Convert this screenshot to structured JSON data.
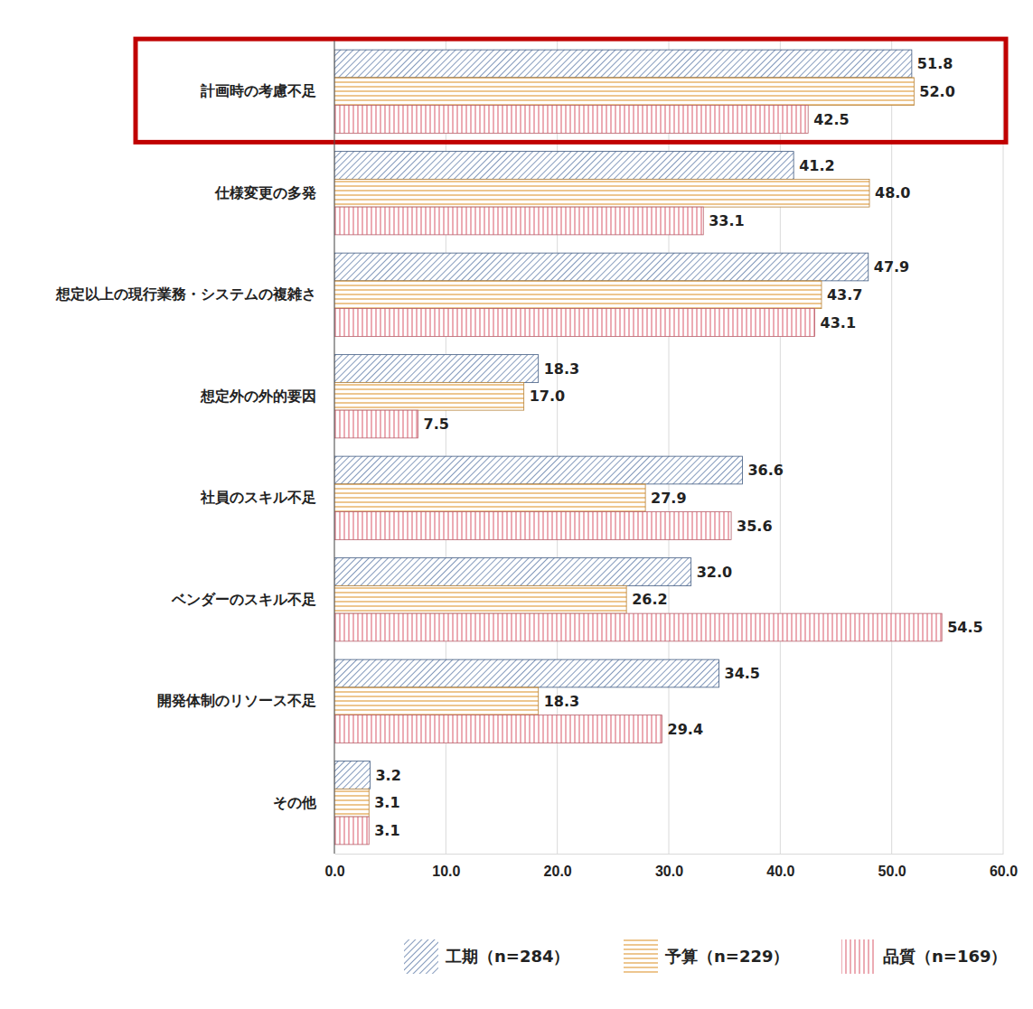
{
  "chart_data": {
    "type": "bar",
    "orientation": "horizontal",
    "categories": [
      "計画時の考慮不足",
      "仕様変更の多発",
      "想定以上の現行業務・システムの複雑さ",
      "想定外の外的要因",
      "社員のスキル不足",
      "ベンダーのスキル不足",
      "開発体制のリソース不足",
      "その他"
    ],
    "series": [
      {
        "name": "工期（n=284）",
        "color": "#4f6f9f",
        "values": [
          51.8,
          41.2,
          47.9,
          18.3,
          36.6,
          32.0,
          34.5,
          3.2
        ],
        "value_labels": [
          "51.8",
          "41.2",
          "47.9",
          "18.3",
          "36.6",
          "32.0",
          "34.5",
          "3.2"
        ]
      },
      {
        "name": "予算（n=229）",
        "color": "#e2a044",
        "values": [
          52.0,
          48.0,
          43.7,
          17.0,
          27.9,
          26.2,
          18.3,
          3.1
        ],
        "value_labels": [
          "52.0",
          "48.0",
          "43.7",
          "17.0",
          "27.9",
          "26.2",
          "18.3",
          "3.1"
        ]
      },
      {
        "name": "品質（n=169）",
        "color": "#e07482",
        "values": [
          42.5,
          33.1,
          43.1,
          7.5,
          35.6,
          54.5,
          29.4,
          3.1
        ],
        "value_labels": [
          "42.5",
          "33.1",
          "43.1",
          "7.5",
          "35.6",
          "54.5",
          "29.4",
          "3.1"
        ]
      }
    ],
    "xlim": [
      0,
      60
    ],
    "xticks": [
      {
        "value": 0,
        "label": "0.0"
      },
      {
        "value": 10,
        "label": "10.0"
      },
      {
        "value": 20,
        "label": "20.0"
      },
      {
        "value": 30,
        "label": "30.0"
      },
      {
        "value": 40,
        "label": "40.0"
      },
      {
        "value": 50,
        "label": "50.0"
      },
      {
        "value": 60,
        "label": "60.0"
      }
    ],
    "grid": true,
    "data_labels": true,
    "legend": "bottom"
  }
}
